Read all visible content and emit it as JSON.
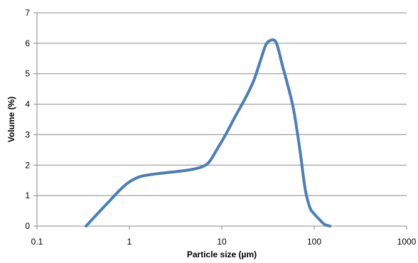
{
  "chart_data": {
    "type": "line",
    "xlabel": "Particle size (µm)",
    "ylabel": "Volume (%)",
    "xscale": "log",
    "xlim": [
      0.1,
      1000
    ],
    "ylim": [
      0,
      7
    ],
    "x_ticks": [
      "0.1",
      "1",
      "10",
      "100",
      "1000"
    ],
    "y_ticks": [
      "0",
      "1",
      "2",
      "3",
      "4",
      "5",
      "6",
      "7"
    ],
    "grid": "horizontal",
    "legend": "none",
    "series": [
      {
        "color": "#4a7ebb",
        "x": [
          0.34,
          0.45,
          0.6,
          0.8,
          1.0,
          1.3,
          1.8,
          2.5,
          3.5,
          5.0,
          6.5,
          7.5,
          9.0,
          11.0,
          14.0,
          18.0,
          22.0,
          26.0,
          30.0,
          34.0,
          38.0,
          41.0,
          45.0,
          52.0,
          60.0,
          70.0,
          80.0,
          90.0,
          100.0,
          115.0,
          130.0,
          148.0
        ],
        "y": [
          0.0,
          0.4,
          0.8,
          1.2,
          1.45,
          1.62,
          1.7,
          1.75,
          1.8,
          1.87,
          1.98,
          2.15,
          2.55,
          3.0,
          3.6,
          4.2,
          4.75,
          5.4,
          5.95,
          6.1,
          6.07,
          5.8,
          5.3,
          4.6,
          3.8,
          2.5,
          1.2,
          0.6,
          0.4,
          0.2,
          0.05,
          0.0
        ]
      }
    ]
  }
}
